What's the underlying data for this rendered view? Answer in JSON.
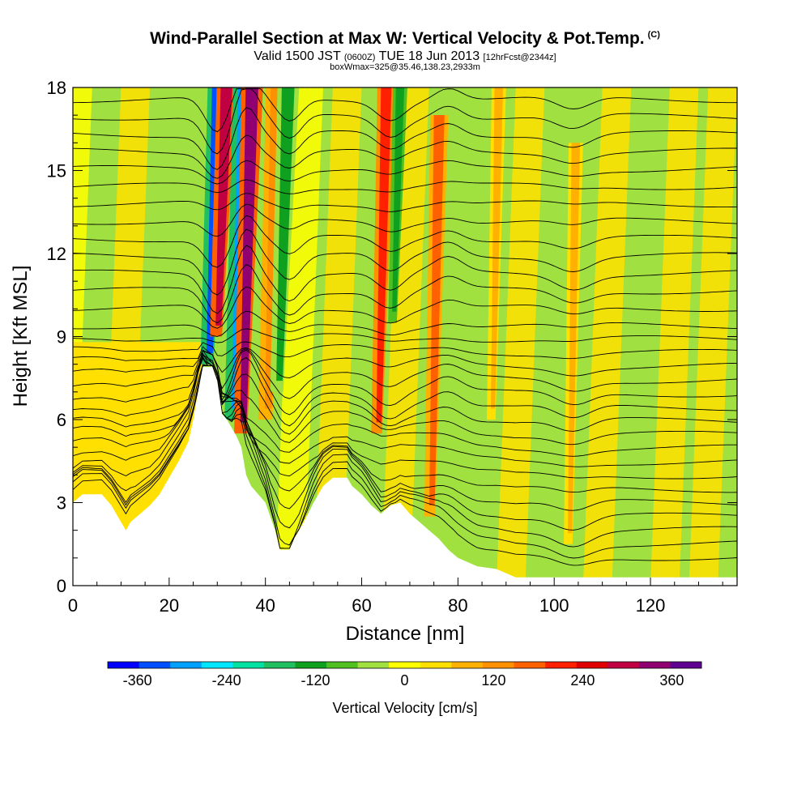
{
  "title": {
    "main": "Wind-Parallel Section at Max W: Vertical Velocity & Pot.Temp.",
    "copyright": "(C)",
    "valid_pre": "Valid 1500 JST ",
    "valid_utc": "(0600Z)",
    "valid_date": " TUE 18 Jun 2013 ",
    "forecast": "[12hrFcst@2344z]",
    "box": "boxWmax=325@35.46,138.23,2933m"
  },
  "chart_data": {
    "type": "heatmap",
    "xlabel": "Distance [nm]",
    "ylabel": "Height [Kft MSL]",
    "xlim": [
      0,
      138
    ],
    "ylim": [
      0,
      18
    ],
    "xticks": [
      0,
      20,
      40,
      60,
      80,
      100,
      120
    ],
    "yticks": [
      0,
      3,
      6,
      9,
      12,
      15,
      18
    ],
    "colorbar": {
      "label": "Vertical Velocity [cm/s]",
      "ticks": [
        -360,
        -240,
        -120,
        0,
        120,
        240,
        360
      ],
      "range": [
        -400,
        400
      ],
      "colors": [
        "#0000ff",
        "#0050ff",
        "#00a0ff",
        "#00e6ff",
        "#00e0a0",
        "#20c060",
        "#10a020",
        "#50c020",
        "#a0e040",
        "#ffff00",
        "#ffe000",
        "#ffb000",
        "#ff9000",
        "#ff6000",
        "#ff2000",
        "#e00000",
        "#c00040",
        "#900070",
        "#600090"
      ]
    },
    "terrain": [
      [
        0,
        3.0
      ],
      [
        2,
        3.3
      ],
      [
        4,
        3.3
      ],
      [
        6,
        3.3
      ],
      [
        8,
        2.9
      ],
      [
        10,
        2.3
      ],
      [
        11,
        2.0
      ],
      [
        12,
        2.3
      ],
      [
        14,
        2.6
      ],
      [
        16,
        2.9
      ],
      [
        18,
        3.3
      ],
      [
        20,
        3.9
      ],
      [
        22,
        4.5
      ],
      [
        24,
        5.2
      ],
      [
        25,
        6.0
      ],
      [
        26,
        7.0
      ],
      [
        27,
        7.9
      ],
      [
        29,
        7.9
      ],
      [
        30,
        7.4
      ],
      [
        31,
        6.2
      ],
      [
        32,
        6.0
      ],
      [
        33,
        5.7
      ],
      [
        34,
        5.4
      ],
      [
        35,
        5.0
      ],
      [
        36,
        4.0
      ],
      [
        37,
        3.6
      ],
      [
        38,
        3.4
      ],
      [
        40,
        3.0
      ],
      [
        42,
        2.0
      ],
      [
        43,
        1.3
      ],
      [
        45,
        1.3
      ],
      [
        46,
        1.7
      ],
      [
        48,
        2.3
      ],
      [
        50,
        3.0
      ],
      [
        52,
        3.6
      ],
      [
        54,
        3.9
      ],
      [
        57,
        3.9
      ],
      [
        58,
        3.6
      ],
      [
        60,
        3.3
      ],
      [
        62,
        2.9
      ],
      [
        64,
        2.6
      ],
      [
        66,
        2.9
      ],
      [
        68,
        3.0
      ],
      [
        70,
        2.6
      ],
      [
        72,
        2.3
      ],
      [
        74,
        2.0
      ],
      [
        76,
        1.7
      ],
      [
        78,
        1.3
      ],
      [
        80,
        1.0
      ],
      [
        84,
        0.7
      ],
      [
        88,
        0.6
      ],
      [
        92,
        0.3
      ],
      [
        100,
        0.3
      ],
      [
        112,
        0.3
      ],
      [
        138,
        0.3
      ]
    ],
    "updraft_bands": [
      {
        "x0": 26.5,
        "x1": 32.5,
        "y0": 8.0,
        "y1": 18,
        "w": -330
      },
      {
        "x0": 28.5,
        "x1": 34.0,
        "y0": 9.0,
        "y1": 18,
        "w": 300
      },
      {
        "x0": 31.5,
        "x1": 38.5,
        "y0": 6.0,
        "y1": 18,
        "w": -300
      },
      {
        "x0": 33.5,
        "x1": 39.5,
        "y0": 5.5,
        "y1": 18,
        "w": 330
      },
      {
        "x0": 38.5,
        "x1": 45.0,
        "y0": 6.0,
        "y1": 18,
        "w": 130
      },
      {
        "x0": 41.0,
        "x1": 47.0,
        "y0": 7.0,
        "y1": 18,
        "w": -110
      },
      {
        "x0": 62.0,
        "x1": 67.0,
        "y0": 5.5,
        "y1": 18,
        "w": 220
      },
      {
        "x0": 65.5,
        "x1": 69.5,
        "y0": 9.5,
        "y1": 18,
        "w": -140
      },
      {
        "x0": 73.0,
        "x1": 78.0,
        "y0": 2.5,
        "y1": 17,
        "w": 180
      },
      {
        "x0": 86.0,
        "x1": 90.0,
        "y0": 6.0,
        "y1": 18,
        "w": 90
      },
      {
        "x0": 102.0,
        "x1": 106.0,
        "y0": 1.5,
        "y1": 16,
        "w": 70
      }
    ],
    "theta_levels": [
      30,
      31,
      32,
      33,
      34,
      35,
      36,
      37,
      38,
      39,
      40,
      41,
      42,
      43,
      44,
      45,
      46,
      47,
      48,
      49,
      50,
      51,
      52,
      53,
      54,
      55,
      56,
      57,
      58,
      59,
      60
    ]
  }
}
